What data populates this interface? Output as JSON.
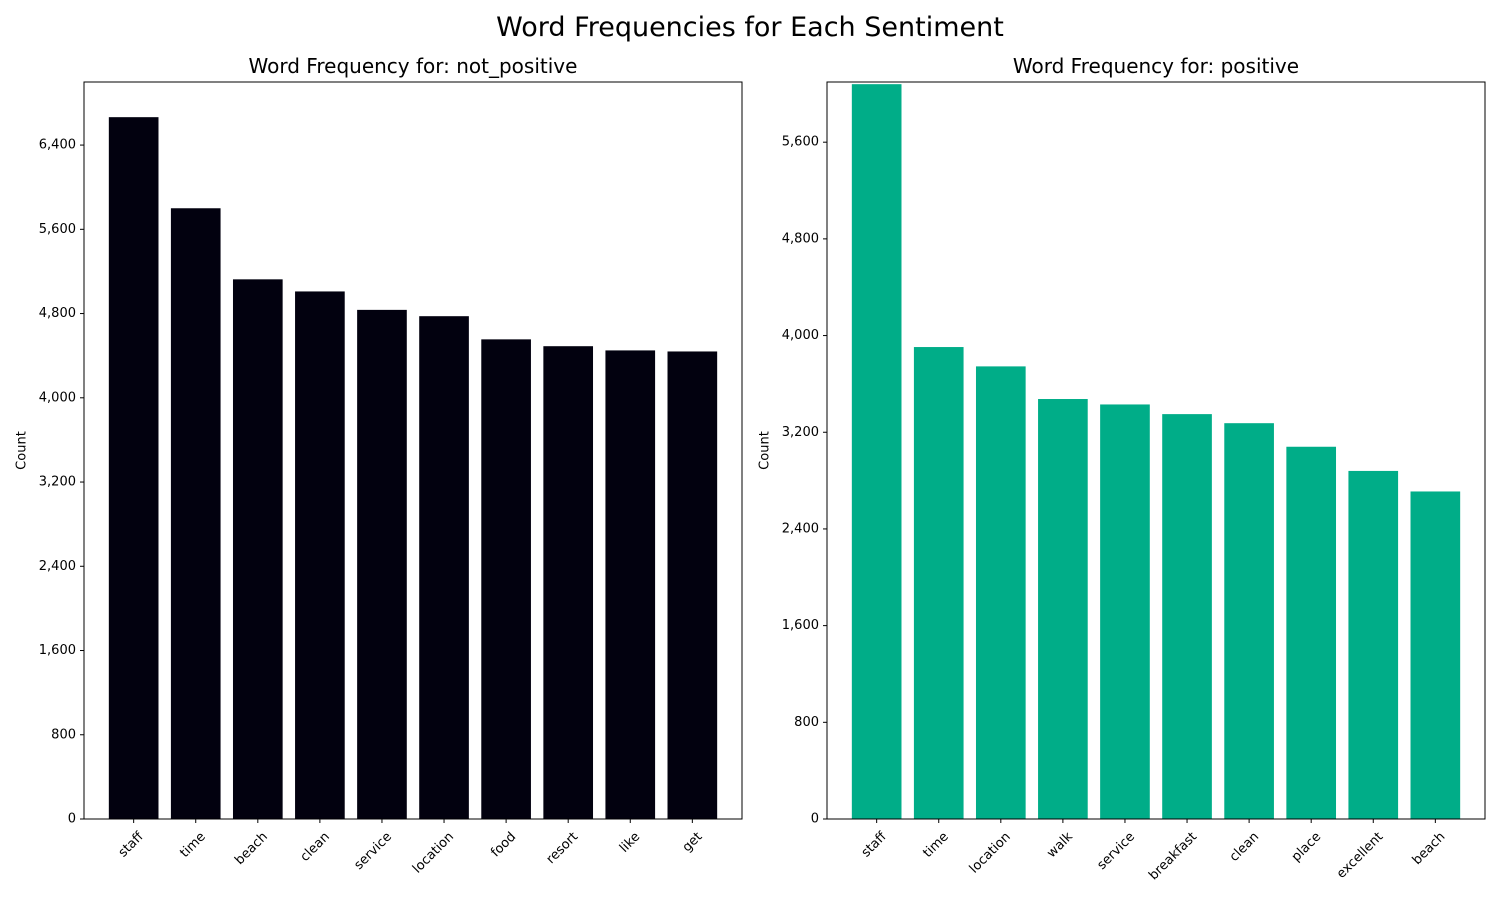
{
  "suptitle": "Word Frequencies for Each Sentiment",
  "chart_data": [
    {
      "type": "bar",
      "title": "Word Frequency for: not_positive",
      "xlabel": "",
      "ylabel": "Count",
      "color": "#02010f",
      "ylim": [
        0,
        6999
      ],
      "yticks": [
        0,
        800,
        1600,
        2400,
        3200,
        4000,
        4800,
        5600,
        6400
      ],
      "ytick_labels": [
        "0",
        "800",
        "1,600",
        "2,400",
        "3,200",
        "4,000",
        "4,800",
        "5,600",
        "6,400"
      ],
      "categories": [
        "staff",
        "time",
        "beach",
        "clean",
        "service",
        "location",
        "food",
        "resort",
        "like",
        "get"
      ],
      "values": [
        6665,
        5800,
        5125,
        5010,
        4835,
        4775,
        4555,
        4490,
        4450,
        4440
      ],
      "grid": false,
      "legend": "none"
    },
    {
      "type": "bar",
      "title": "Word Frequency for: positive",
      "xlabel": "",
      "ylabel": "Count",
      "color": "#00ad88",
      "ylim": [
        0,
        6098
      ],
      "yticks": [
        0,
        800,
        1600,
        2400,
        3200,
        4000,
        4800,
        5600
      ],
      "ytick_labels": [
        "0",
        "800",
        "1,600",
        "2,400",
        "3,200",
        "4,000",
        "4,800",
        "5,600"
      ],
      "categories": [
        "staff",
        "time",
        "location",
        "walk",
        "service",
        "breakfast",
        "clean",
        "place",
        "excellent",
        "beach"
      ],
      "values": [
        6080,
        3905,
        3745,
        3475,
        3430,
        3350,
        3275,
        3080,
        2880,
        2710
      ],
      "grid": false,
      "legend": "none"
    }
  ]
}
